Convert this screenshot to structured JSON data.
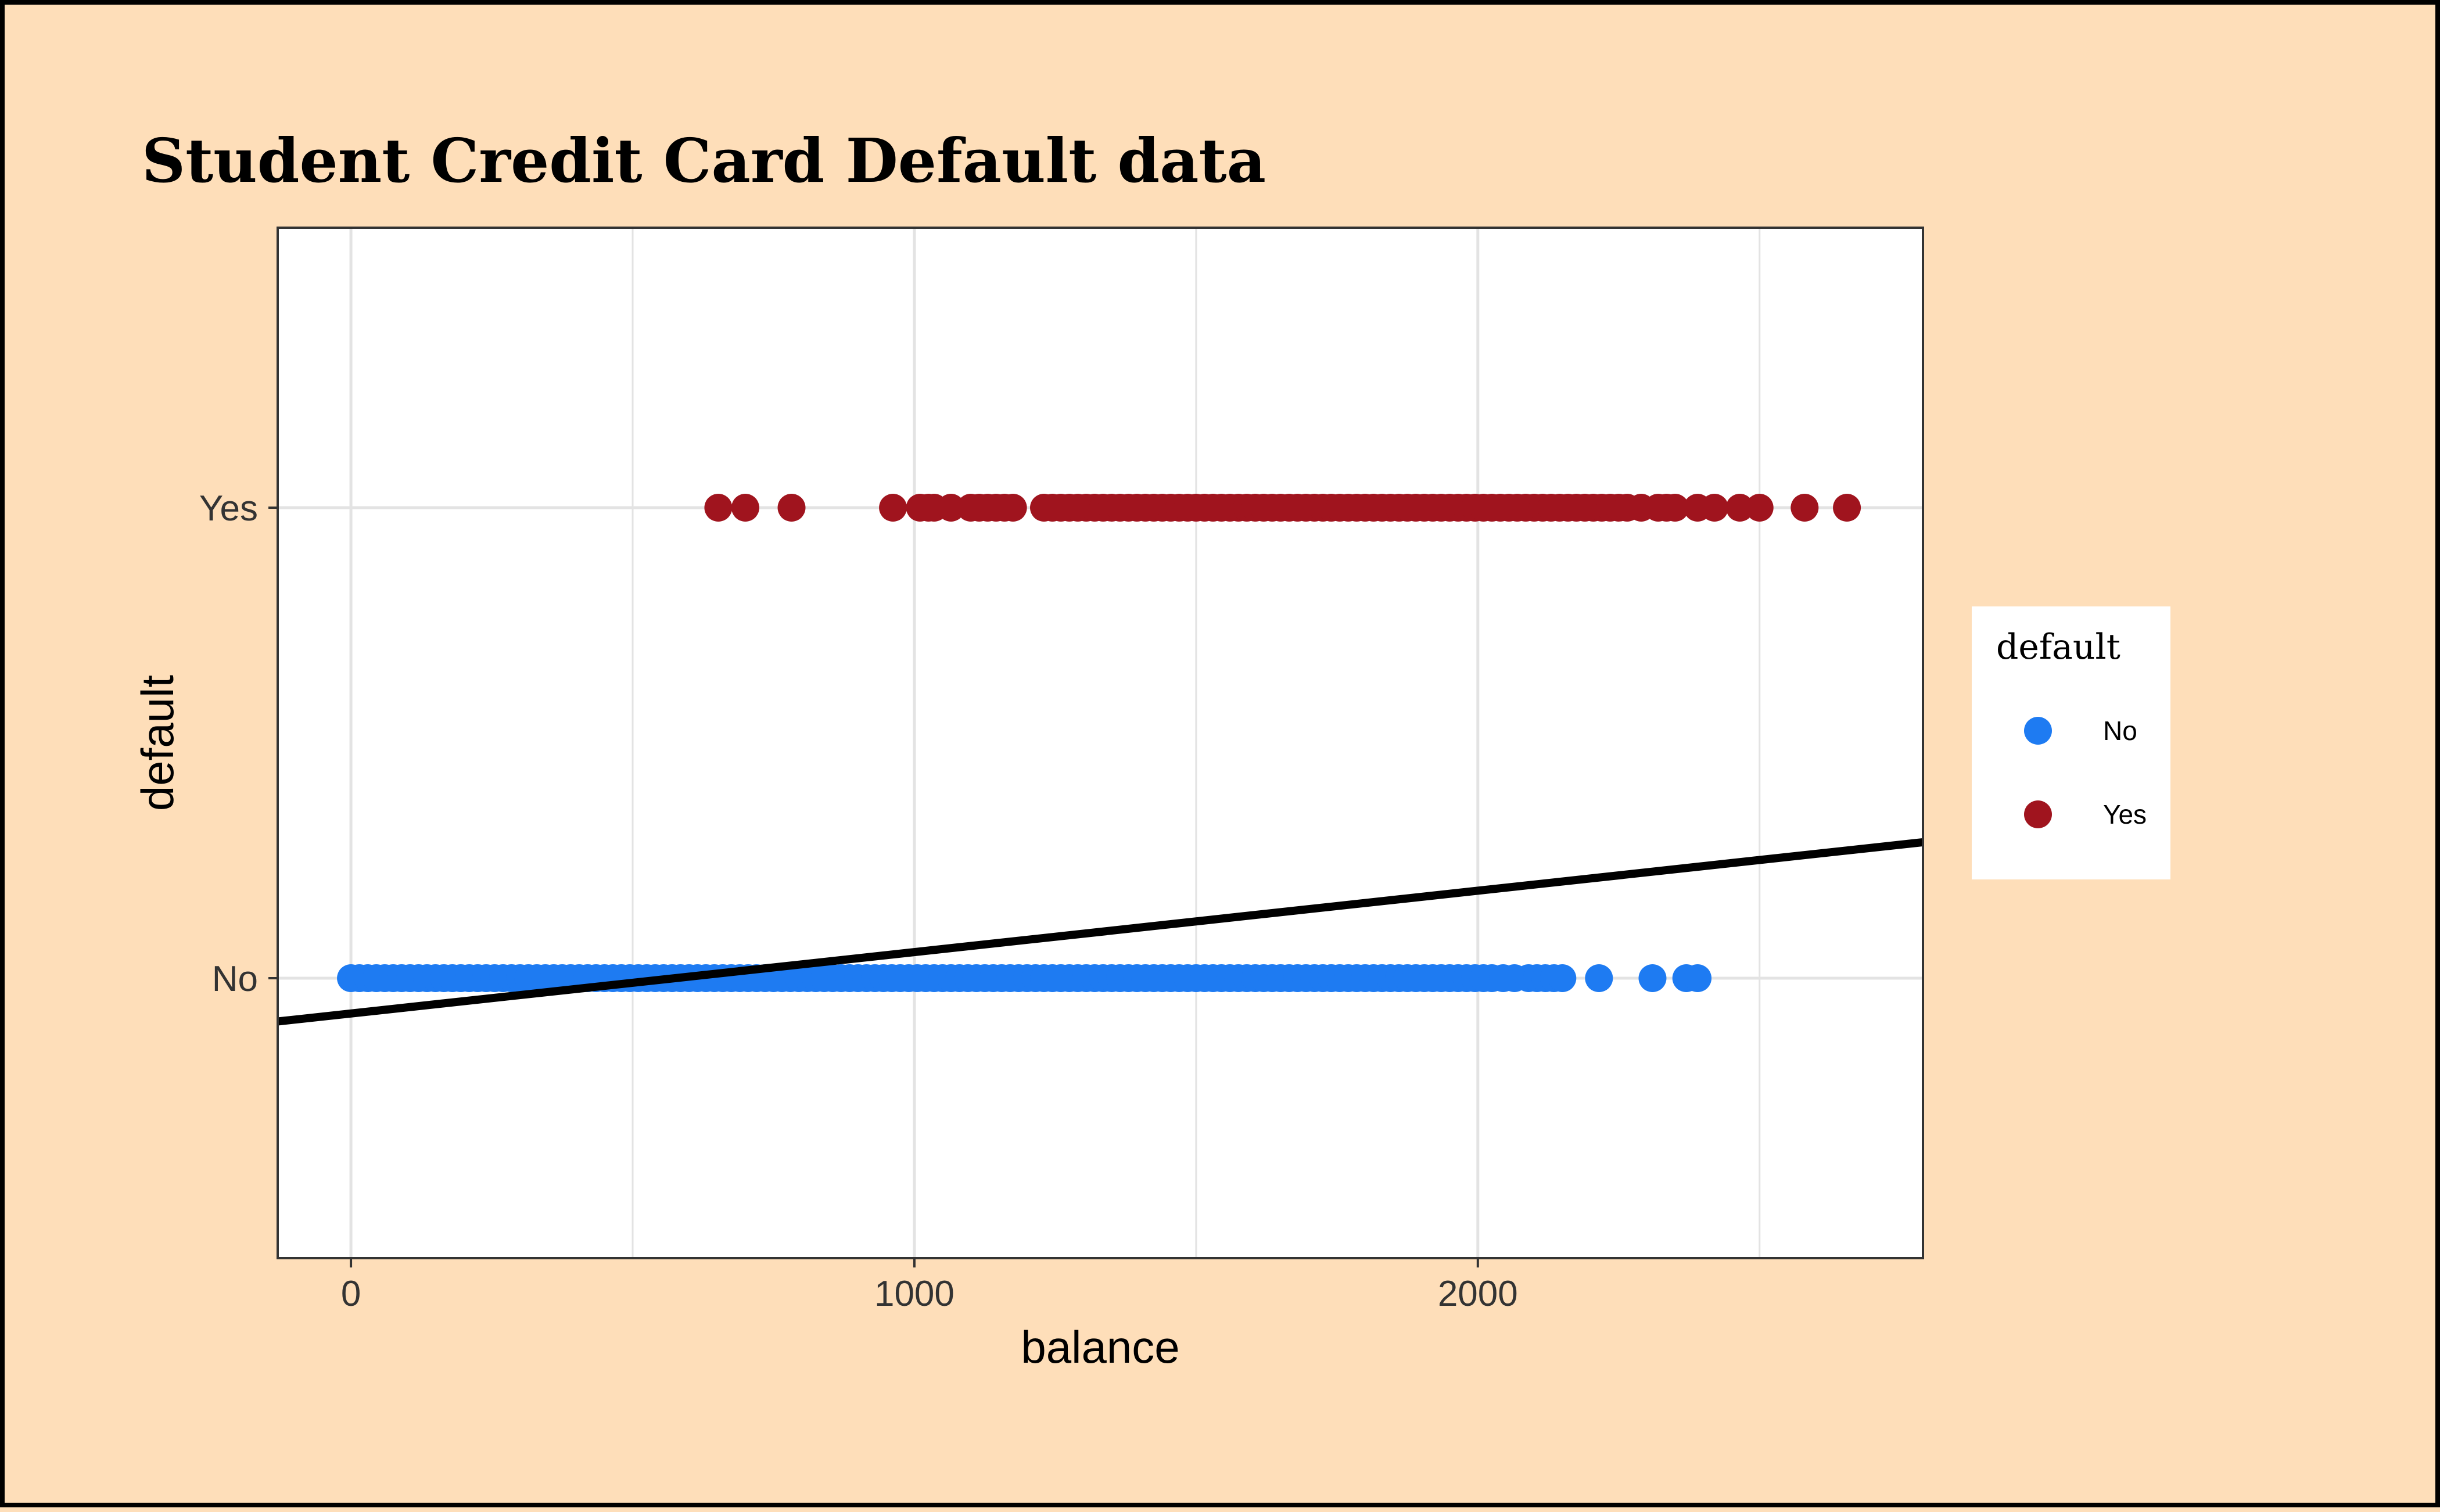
{
  "chart_data": {
    "type": "scatter",
    "title": "Student Credit Card Default data",
    "xlabel": "balance",
    "ylabel": "default",
    "xlim": [
      -130,
      2790
    ],
    "x_ticks": [
      {
        "value": 0,
        "label": "0"
      },
      {
        "value": 1000,
        "label": "1000"
      },
      {
        "value": 2000,
        "label": "2000"
      }
    ],
    "y_categories": [
      "No",
      "Yes"
    ],
    "grid": true,
    "legend": {
      "title": "default",
      "placement": "right",
      "entries": [
        {
          "label": "No",
          "color": "#1E7BF2"
        },
        {
          "label": "Yes",
          "color": "#A0141E"
        }
      ]
    },
    "series": [
      {
        "name": "No",
        "category": "No",
        "color": "#1E7BF2",
        "x": [
          0,
          15,
          30,
          45,
          60,
          75,
          90,
          105,
          120,
          135,
          150,
          165,
          180,
          195,
          210,
          225,
          240,
          255,
          270,
          285,
          300,
          315,
          330,
          345,
          360,
          375,
          390,
          405,
          420,
          435,
          450,
          465,
          480,
          495,
          510,
          525,
          540,
          555,
          570,
          585,
          600,
          615,
          630,
          645,
          660,
          675,
          690,
          705,
          720,
          735,
          750,
          765,
          780,
          795,
          810,
          825,
          840,
          855,
          870,
          885,
          900,
          915,
          930,
          945,
          960,
          975,
          990,
          1005,
          1020,
          1035,
          1050,
          1065,
          1080,
          1095,
          1110,
          1125,
          1140,
          1155,
          1170,
          1185,
          1200,
          1215,
          1230,
          1245,
          1260,
          1275,
          1290,
          1305,
          1320,
          1335,
          1350,
          1365,
          1380,
          1395,
          1410,
          1425,
          1440,
          1455,
          1470,
          1485,
          1500,
          1515,
          1530,
          1545,
          1560,
          1575,
          1590,
          1605,
          1620,
          1635,
          1650,
          1665,
          1680,
          1695,
          1710,
          1725,
          1740,
          1755,
          1770,
          1785,
          1800,
          1815,
          1830,
          1845,
          1860,
          1875,
          1890,
          1905,
          1920,
          1935,
          1950,
          1965,
          1980,
          1995,
          2010,
          2025,
          2045,
          2065,
          2090,
          2105,
          2120,
          2135,
          2150,
          2215,
          2310,
          2370,
          2390
        ]
      },
      {
        "name": "Yes",
        "category": "Yes",
        "color": "#A0141E",
        "x": [
          652,
          700,
          782,
          962,
          1010,
          1025,
          1035,
          1065,
          1100,
          1115,
          1130,
          1145,
          1160,
          1175,
          1230,
          1245,
          1260,
          1275,
          1290,
          1305,
          1320,
          1335,
          1350,
          1365,
          1380,
          1395,
          1410,
          1425,
          1440,
          1455,
          1470,
          1485,
          1500,
          1515,
          1530,
          1545,
          1560,
          1575,
          1590,
          1605,
          1620,
          1635,
          1650,
          1665,
          1680,
          1695,
          1710,
          1725,
          1740,
          1755,
          1770,
          1785,
          1800,
          1815,
          1830,
          1845,
          1860,
          1875,
          1890,
          1905,
          1920,
          1935,
          1950,
          1965,
          1980,
          1995,
          2010,
          2025,
          2040,
          2055,
          2070,
          2085,
          2100,
          2115,
          2130,
          2145,
          2160,
          2175,
          2190,
          2205,
          2220,
          2235,
          2250,
          2265,
          2290,
          2320,
          2335,
          2350,
          2390,
          2420,
          2465,
          2500,
          2580,
          2655
        ]
      }
    ],
    "fit_line": {
      "type": "linear",
      "color": "#000000",
      "points": [
        {
          "x": -130,
          "y_fraction": -0.092
        },
        {
          "x": 2790,
          "y_fraction": 0.289
        }
      ],
      "note_units": "y_fraction is fraction of distance from No (0) to Yes (1)"
    }
  }
}
